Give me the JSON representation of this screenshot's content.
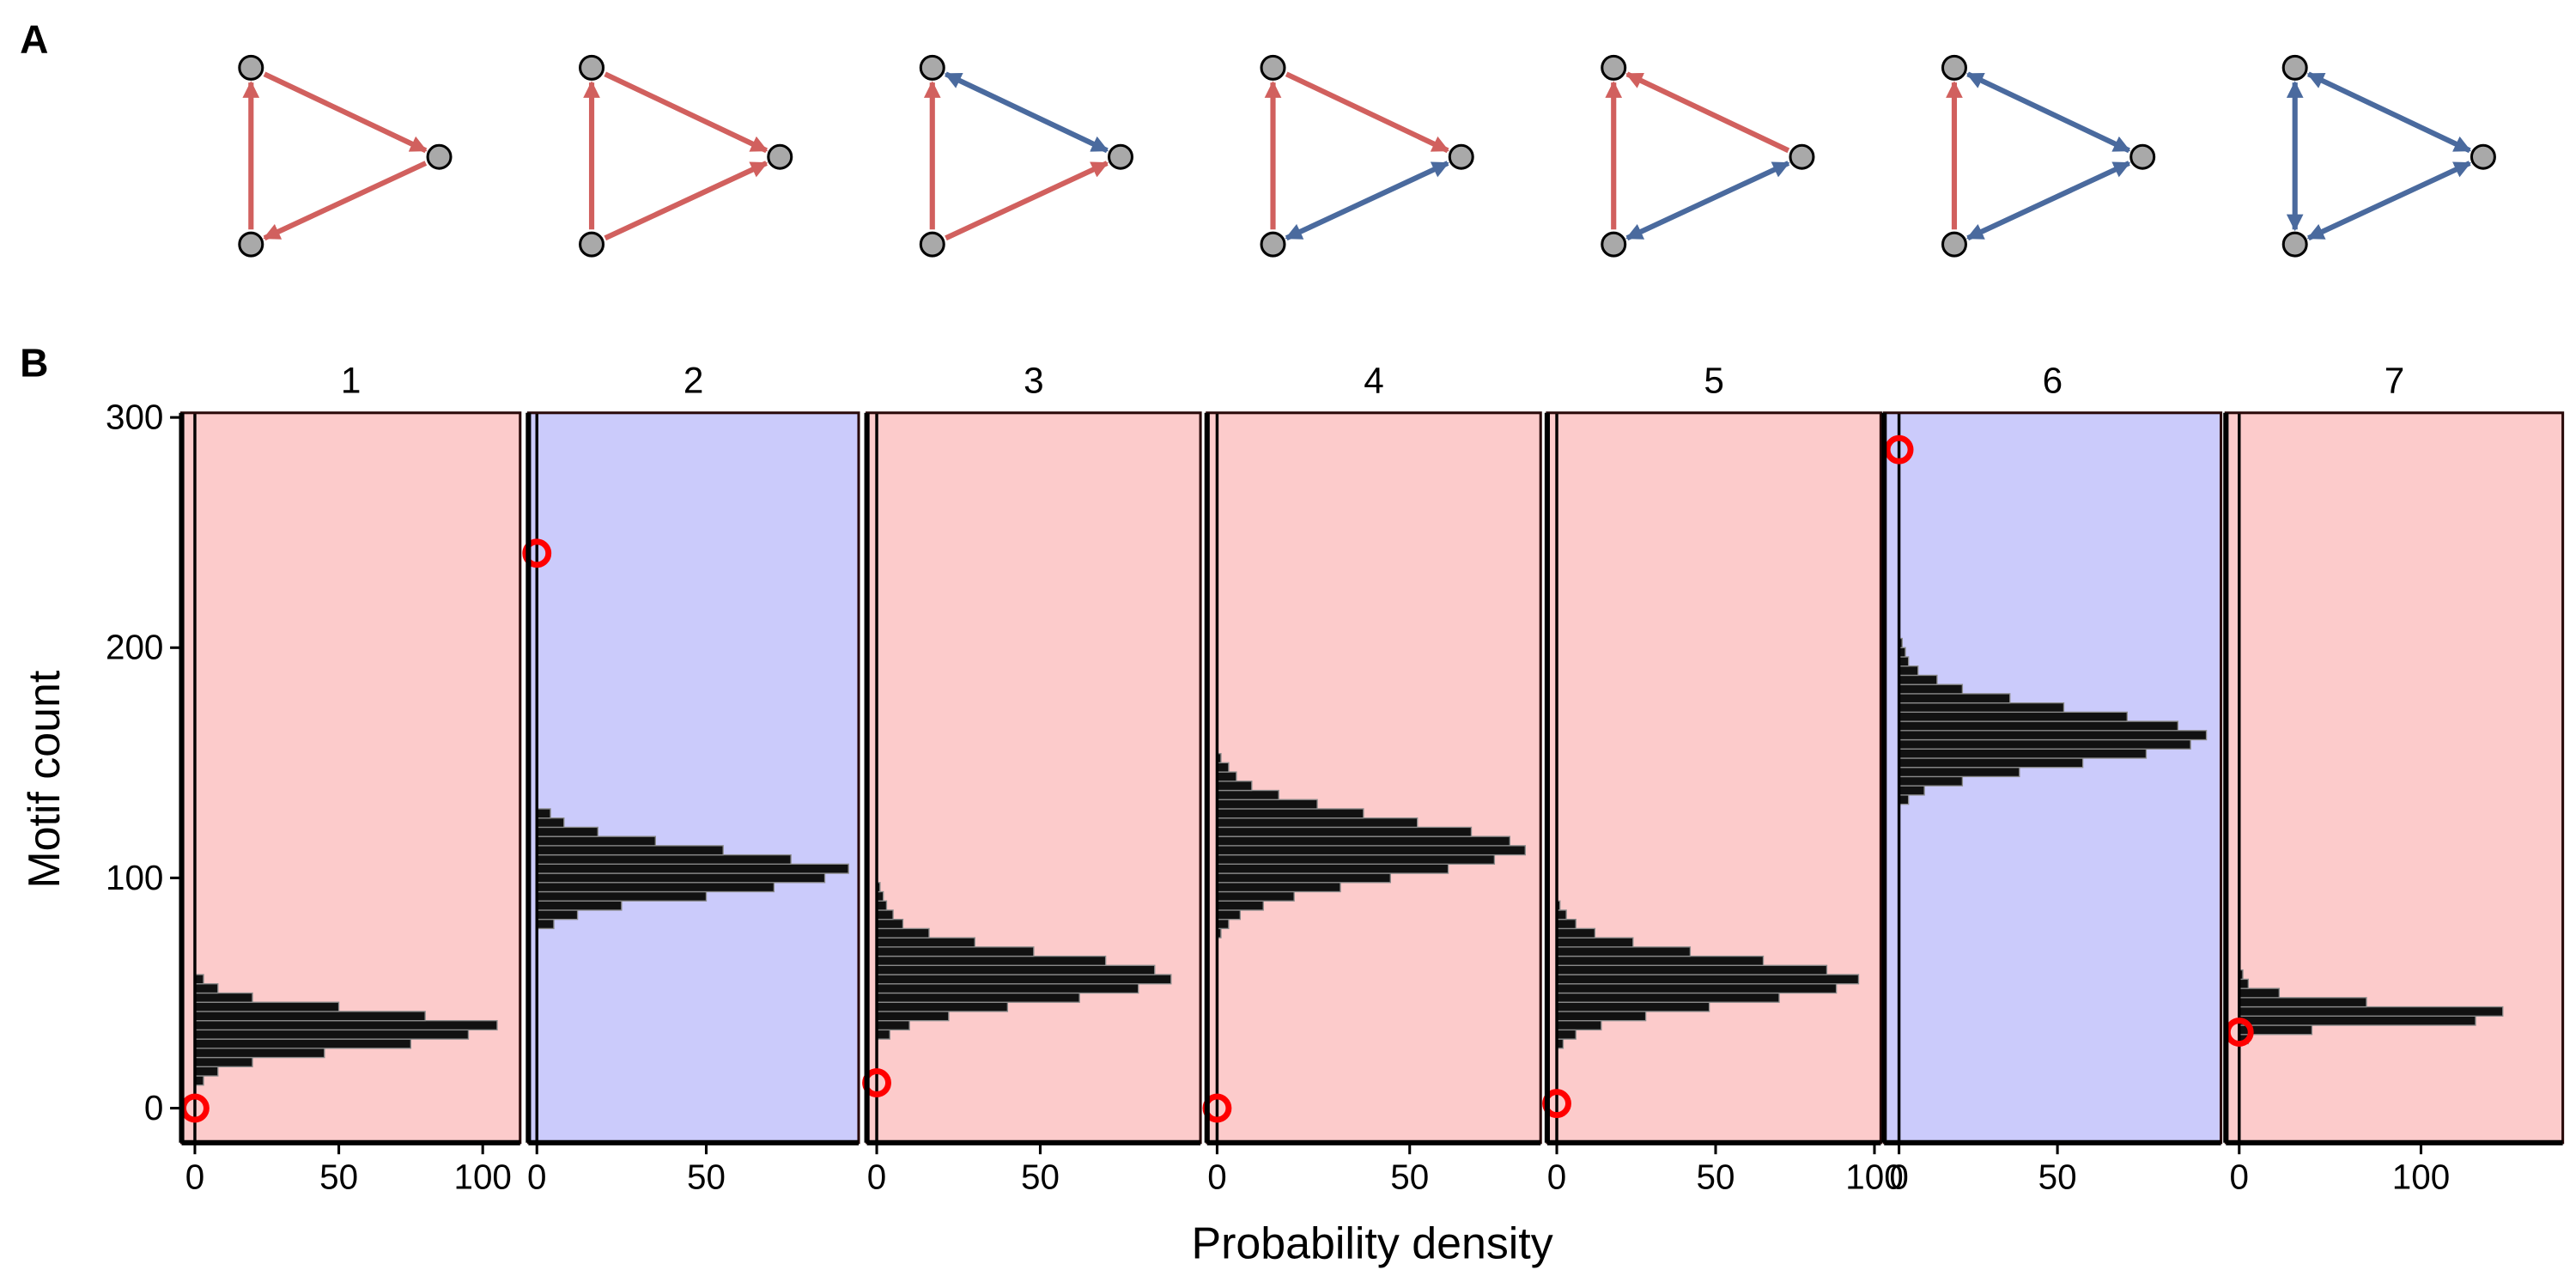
{
  "panel_labels": [
    "A",
    "B"
  ],
  "x_label": "Probability density",
  "y_label": "Motif count",
  "chart_data": [
    {
      "type": "histogram",
      "title": "1",
      "background": "#fccbcb",
      "color": "#111111",
      "bins": [
        10,
        14,
        18,
        22,
        26,
        30,
        34,
        38,
        42,
        46,
        50,
        54,
        58
      ],
      "values": [
        3,
        8,
        20,
        45,
        75,
        95,
        105,
        80,
        50,
        20,
        8,
        3
      ],
      "xlim": [
        -4.6,
        113
      ],
      "xticks": [
        0,
        50,
        100
      ],
      "ylim": [
        -15,
        302
      ],
      "yticks": [
        0,
        100,
        200,
        300
      ],
      "observed": {
        "x": 0,
        "y": 0,
        "color": "#ff0000"
      }
    },
    {
      "type": "histogram",
      "title": "2",
      "background": "#cbcbfb",
      "color": "#111111",
      "bins": [
        78,
        82,
        86,
        90,
        94,
        98,
        102,
        106,
        110,
        114,
        118,
        122,
        126,
        130
      ],
      "values": [
        5,
        12,
        25,
        50,
        70,
        85,
        92,
        75,
        55,
        35,
        18,
        8,
        4
      ],
      "xlim": [
        -2.5,
        95
      ],
      "xticks": [
        0,
        50
      ],
      "ylim": [
        -15,
        302
      ],
      "observed": {
        "x": 0,
        "y": 241,
        "color": "#ff0000"
      }
    },
    {
      "type": "histogram",
      "title": "3",
      "background": "#fccbcb",
      "color": "#111111",
      "bins": [
        30,
        34,
        38,
        42,
        46,
        50,
        54,
        58,
        62,
        66,
        70,
        74,
        78,
        82,
        86,
        90,
        94,
        98
      ],
      "values": [
        4,
        10,
        22,
        40,
        62,
        80,
        90,
        85,
        70,
        48,
        30,
        16,
        8,
        5,
        3,
        2,
        1
      ],
      "xlim": [
        -3,
        99
      ],
      "xticks": [
        0,
        50
      ],
      "ylim": [
        -15,
        302
      ],
      "observed": {
        "x": 0,
        "y": 11,
        "color": "#ff0000"
      }
    },
    {
      "type": "histogram",
      "title": "4",
      "background": "#fccbcb",
      "color": "#111111",
      "bins": [
        74,
        78,
        82,
        86,
        90,
        94,
        98,
        102,
        106,
        110,
        114,
        118,
        122,
        126,
        130,
        134,
        138,
        142,
        146,
        150,
        154
      ],
      "values": [
        1,
        3,
        6,
        12,
        20,
        32,
        45,
        60,
        72,
        80,
        76,
        66,
        52,
        38,
        26,
        16,
        9,
        5,
        3,
        1
      ],
      "xlim": [
        -2.6,
        84
      ],
      "xticks": [
        0,
        50
      ],
      "ylim": [
        -15,
        302
      ],
      "observed": {
        "x": 0,
        "y": 0,
        "color": "#ff0000"
      }
    },
    {
      "type": "histogram",
      "title": "5",
      "background": "#fccbcb",
      "color": "#111111",
      "bins": [
        26,
        30,
        34,
        38,
        42,
        46,
        50,
        54,
        58,
        62,
        66,
        70,
        74,
        78,
        82,
        86,
        90
      ],
      "values": [
        2,
        6,
        14,
        28,
        48,
        70,
        88,
        95,
        85,
        65,
        42,
        24,
        12,
        6,
        3,
        1
      ],
      "xlim": [
        -3,
        102
      ],
      "xticks": [
        0,
        50,
        100
      ],
      "ylim": [
        -15,
        302
      ],
      "observed": {
        "x": 0,
        "y": 2,
        "color": "#ff0000"
      }
    },
    {
      "type": "histogram",
      "title": "6",
      "background": "#cbcbfb",
      "color": "#111111",
      "bins": [
        132,
        136,
        140,
        144,
        148,
        152,
        156,
        160,
        164,
        168,
        172,
        176,
        180,
        184,
        188,
        192,
        196,
        200,
        204
      ],
      "values": [
        3,
        8,
        20,
        38,
        58,
        78,
        92,
        97,
        88,
        72,
        52,
        35,
        20,
        12,
        6,
        3,
        2,
        1
      ],
      "xlim": [
        -4.7,
        101.6
      ],
      "xticks": [
        0,
        50
      ],
      "ylim": [
        -15,
        302
      ],
      "observed": {
        "x": 0,
        "y": 286,
        "color": "#ff0000"
      }
    },
    {
      "type": "histogram",
      "title": "7",
      "background": "#fccbcb",
      "color": "#111111",
      "bins": [
        28,
        32,
        36,
        40,
        44,
        48,
        52,
        56,
        60
      ],
      "values": [
        5,
        40,
        130,
        145,
        70,
        22,
        5,
        2
      ],
      "xlim": [
        -7.3,
        178
      ],
      "xticks": [
        0,
        100
      ],
      "ylim": [
        -15,
        302
      ],
      "observed": {
        "x": 0,
        "y": 33,
        "color": "#ff0000"
      }
    }
  ]
}
